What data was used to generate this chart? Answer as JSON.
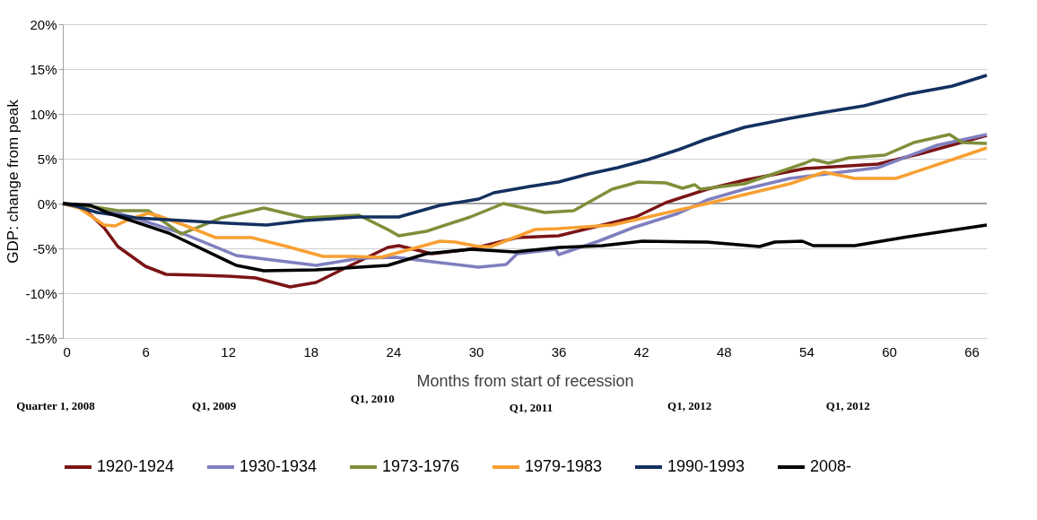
{
  "chart_data": {
    "type": "line",
    "xlabel": "Months from start of recession",
    "ylabel": "GDP: change from peak",
    "xlim": [
      0,
      67.1
    ],
    "xticks": [
      0,
      6,
      12,
      18,
      24,
      30,
      36,
      42,
      48,
      54,
      60,
      66
    ],
    "ylim": [
      -15,
      20
    ],
    "yticks": [
      {
        "value": -15,
        "label": "-15%"
      },
      {
        "value": -10,
        "label": "-10%"
      },
      {
        "value": -5,
        "label": "-5%"
      },
      {
        "value": 0,
        "label": "0%"
      },
      {
        "value": 5,
        "label": "5%"
      },
      {
        "value": 10,
        "label": "10%"
      },
      {
        "value": 15,
        "label": "15%"
      },
      {
        "value": 20,
        "label": "20%"
      }
    ],
    "grid": "y",
    "legend": "bottom",
    "marker": "none",
    "line_style": "solid",
    "ref_lines": [
      {
        "axis": "y",
        "value": 0,
        "color": "#a0a0a0"
      }
    ],
    "annotations": [
      "Quarter 1, 2008",
      "Q1, 2009",
      "Q1, 2010",
      "Q1, 2011",
      "Q1, 2012",
      "Q1, 2012"
    ],
    "series": [
      {
        "name": "1920-1924",
        "color": "#7b1416",
        "x": [
          0,
          1.5,
          3,
          4,
          6,
          7.5,
          10,
          11.9,
          14,
          16.5,
          18.4,
          20.5,
          23.6,
          24.4,
          26.8,
          29.6,
          33,
          36,
          39.2,
          41.6,
          43.8,
          46.8,
          49.5,
          53.9,
          59.2,
          62.4,
          67.1
        ],
        "values": [
          0,
          -0.5,
          -2.7,
          -4.8,
          -7.0,
          -7.9,
          -8.0,
          -8.1,
          -8.3,
          -9.3,
          -8.8,
          -7.2,
          -4.9,
          -4.7,
          -5.6,
          -5.1,
          -3.8,
          -3.6,
          -2.4,
          -1.5,
          0.1,
          1.6,
          2.6,
          3.9,
          4.4,
          5.6,
          7.6
        ]
      },
      {
        "name": "1930-1934",
        "color": "#7f7fbf",
        "x": [
          0,
          2,
          5,
          8.8,
          12.6,
          18.4,
          21.6,
          24.2,
          27.4,
          30.2,
          32.2,
          33,
          35.8,
          36,
          38.9,
          41.4,
          44.7,
          46.8,
          49.5,
          52.8,
          59.2,
          63.5,
          67.1
        ],
        "values": [
          0,
          -0.3,
          -1.5,
          -3.4,
          -5.8,
          -6.9,
          -6.1,
          -6.0,
          -6.6,
          -7.1,
          -6.8,
          -5.6,
          -5.1,
          -5.7,
          -4.2,
          -2.7,
          -1.1,
          0.4,
          1.6,
          2.8,
          4.0,
          6.5,
          7.7
        ]
      },
      {
        "name": "1973-1976",
        "color": "#7f8f3a",
        "x": [
          0,
          2,
          4,
          6.2,
          8.6,
          11.5,
          14.6,
          17.6,
          21.5,
          23.6,
          24.4,
          26.4,
          29.6,
          32,
          35,
          37.1,
          39.9,
          41.8,
          43.8,
          45,
          45.9,
          46.3,
          49.5,
          53.9,
          54.5,
          55.6,
          57.1,
          59.7,
          61.8,
          64.4,
          65.3,
          67.1
        ],
        "values": [
          0,
          -0.3,
          -0.8,
          -0.8,
          -3.4,
          -1.6,
          -0.5,
          -1.6,
          -1.3,
          -2.9,
          -3.6,
          -3.1,
          -1.5,
          0,
          -1.0,
          -0.8,
          1.6,
          2.4,
          2.3,
          1.7,
          2.1,
          1.6,
          2.2,
          4.5,
          4.9,
          4.5,
          5.1,
          5.4,
          6.8,
          7.7,
          6.8,
          6.7
        ]
      },
      {
        "name": "1979-1983",
        "color": "#f8a032",
        "x": [
          0,
          1.2,
          3,
          3.8,
          4.9,
          6.2,
          6.8,
          8.8,
          11.1,
          13.7,
          16.3,
          18.9,
          21,
          23.1,
          27.4,
          28.5,
          30.2,
          31.1,
          34.3,
          36,
          39.9,
          42.5,
          46.8,
          52.8,
          55.3,
          57.5,
          60.5,
          64.6,
          67.1
        ],
        "values": [
          0,
          -0.5,
          -2.4,
          -2.5,
          -1.7,
          -1.1,
          -1.3,
          -2.4,
          -3.8,
          -3.8,
          -4.8,
          -5.9,
          -5.9,
          -6.0,
          -4.2,
          -4.3,
          -4.8,
          -4.8,
          -2.9,
          -2.8,
          -2.4,
          -1.5,
          0,
          2.2,
          3.5,
          2.8,
          2.8,
          4.9,
          6.2
        ]
      },
      {
        "name": "1990-1993",
        "color": "#13305f",
        "x": [
          0,
          1,
          2.5,
          5.3,
          12,
          14.8,
          17.6,
          21.5,
          24.4,
          27.4,
          30.2,
          31.3,
          33.9,
          36,
          38.2,
          40.3,
          42.5,
          44.7,
          46.6,
          49.5,
          52.8,
          55,
          58.2,
          61.4,
          64.6,
          67.1
        ],
        "values": [
          0,
          -0.3,
          -1.0,
          -1.6,
          -2.2,
          -2.4,
          -1.9,
          -1.5,
          -1.5,
          -0.2,
          0.5,
          1.2,
          1.9,
          2.4,
          3.3,
          4.0,
          4.9,
          6.0,
          7.1,
          8.5,
          9.5,
          10.1,
          10.9,
          12.2,
          13.1,
          14.3
        ]
      },
      {
        "name": "2008-",
        "color": "#000000",
        "x": [
          0,
          2,
          3.4,
          7.7,
          12.6,
          14.6,
          18.4,
          23.6,
          26.4,
          29.6,
          32.8,
          36,
          39.2,
          42.1,
          46.8,
          50.6,
          51.7,
          53.7,
          54.5,
          57.5,
          61.4,
          67.1
        ],
        "values": [
          0,
          -0.2,
          -1.1,
          -3.3,
          -6.9,
          -7.5,
          -7.4,
          -6.9,
          -5.6,
          -5.1,
          -5.4,
          -4.9,
          -4.7,
          -4.2,
          -4.3,
          -4.8,
          -4.3,
          -4.2,
          -4.7,
          -4.7,
          -3.7,
          -2.4
        ]
      }
    ]
  }
}
